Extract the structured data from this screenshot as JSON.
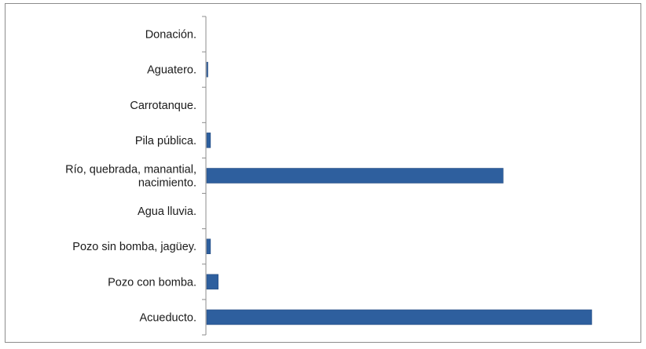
{
  "chart_data": {
    "type": "bar",
    "orientation": "horizontal",
    "categories": [
      "Acueducto.",
      "Pozo con bomba.",
      "Pozo sin bomba, jagüey.",
      "Agua lluvia.",
      "Río, quebrada, manantial, nacimiento.",
      "Pila pública.",
      "Carrotanque.",
      "Aguatero.",
      "Donación."
    ],
    "category_lines": [
      [
        "Acueducto."
      ],
      [
        "Pozo con bomba."
      ],
      [
        "Pozo sin bomba, jagüey."
      ],
      [
        "Agua lluvia."
      ],
      [
        "Río, quebrada, manantial,",
        "nacimiento."
      ],
      [
        "Pila pública."
      ],
      [
        "Carrotanque."
      ],
      [
        "Aguatero."
      ],
      [
        "Donación."
      ]
    ],
    "values": [
      100,
      3,
      1,
      0,
      77,
      1,
      0,
      0.3,
      0
    ],
    "xlim": [
      0,
      100
    ],
    "grid": false,
    "legend": "none",
    "colors": {
      "bar": "#2e5f9e",
      "bar_edge": "#1f4579",
      "axis": "#8c8c8c"
    }
  }
}
